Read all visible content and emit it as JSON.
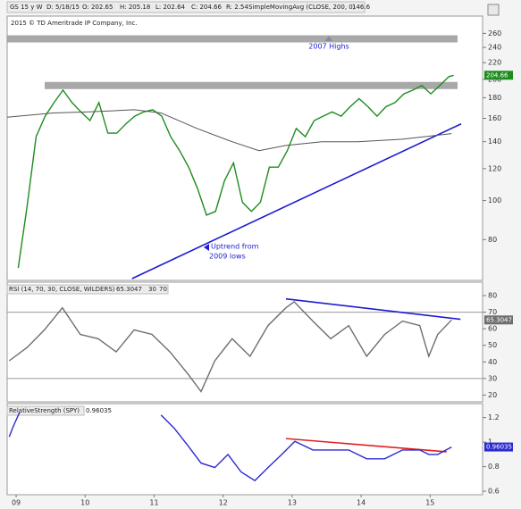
{
  "header": [
    "GS 15 y W",
    "D: 5/18/15",
    "O: 202.65",
    "H: 205.18",
    "L: 202.64",
    "C: 204.66",
    "R: 2.54",
    "SimpleMovingAvg (CLOSE, 200, 0)",
    "146.6"
  ],
  "watermark": "2015 © TD Ameritrade IP Company, Inc.",
  "chart_data": [
    {
      "type": "line",
      "log_scale": true,
      "current_label": "204.66",
      "annotations": [
        "2007 Highs",
        "Uptrend from",
        "2009 lows"
      ],
      "xlim": [
        2008.87,
        2015.76
      ],
      "ylim": [
        64,
        270
      ],
      "yticks": [
        260,
        240,
        220,
        200,
        180,
        160,
        140,
        120,
        100,
        80
      ],
      "levels": [
        193,
        252
      ],
      "level_color": "#9a9a9a",
      "trendlines": [
        {
          "x": [
            2010.68,
            2015.45
          ],
          "values": [
            64,
            155
          ],
          "color": "#1c1cd2"
        }
      ],
      "series": [
        {
          "color": "#1e8c1e",
          "x": [
            2009.03,
            2009.16,
            2009.29,
            2009.42,
            2009.55,
            2009.68,
            2009.81,
            2009.94,
            2010.07,
            2010.2,
            2010.33,
            2010.46,
            2010.59,
            2010.72,
            2010.85,
            2010.98,
            2011.11,
            2011.24,
            2011.37,
            2011.5,
            2011.63,
            2011.76,
            2011.89,
            2012.02,
            2012.15,
            2012.28,
            2012.41,
            2012.54,
            2012.67,
            2012.8,
            2012.93,
            2013.06,
            2013.19,
            2013.32,
            2013.45,
            2013.58,
            2013.71,
            2013.84,
            2013.97,
            2014.1,
            2014.23,
            2014.36,
            2014.49,
            2014.62,
            2014.75,
            2014.88,
            2015.01,
            2015.14,
            2015.27,
            2015.34
          ],
          "values": [
            68,
            97,
            144,
            162,
            175,
            188,
            175,
            166,
            158,
            175,
            147,
            147,
            155,
            162,
            166,
            168,
            162,
            144,
            133,
            121,
            107,
            92,
            94,
            112,
            124,
            99,
            94,
            99,
            121,
            121,
            133,
            151,
            144,
            158,
            162,
            166,
            162,
            171,
            179,
            171,
            162,
            171,
            175,
            184,
            188,
            193,
            184,
            193,
            203,
            204.66
          ]
        },
        {
          "color": "#555555",
          "x": [
            2008.87,
            2009.54,
            2010.06,
            2010.71,
            2011.1,
            2011.62,
            2012.13,
            2012.52,
            2012.91,
            2013.43,
            2013.95,
            2014.6,
            2015.31
          ],
          "values": [
            161,
            165,
            166,
            168,
            165,
            151,
            140,
            133,
            137,
            140,
            140,
            142,
            146.6
          ]
        }
      ]
    },
    {
      "type": "line",
      "title": "RSI (14, 70, 30, CLOSE, WILDERS)",
      "current_label": "65.3047",
      "xlim": [
        2008.87,
        2015.76
      ],
      "ylim": [
        17,
        87
      ],
      "yticks": [
        80,
        70,
        60,
        50,
        40,
        30,
        20
      ],
      "levels": [
        30,
        70
      ],
      "level_color": "#999999",
      "trendlines": [
        {
          "x": [
            2012.91,
            2015.44
          ],
          "values": [
            78,
            65.7
          ],
          "color": "#1c1cd2"
        }
      ],
      "series": [
        {
          "color": "#6e6e6e",
          "x": [
            2008.9,
            2009.16,
            2009.41,
            2009.67,
            2009.93,
            2010.19,
            2010.45,
            2010.71,
            2010.97,
            2011.23,
            2011.49,
            2011.68,
            2011.88,
            2012.13,
            2012.39,
            2012.65,
            2012.91,
            2013.03,
            2013.3,
            2013.56,
            2013.82,
            2014.08,
            2014.34,
            2014.6,
            2014.85,
            2014.98,
            2015.11,
            2015.31
          ],
          "values": [
            40.7,
            48.7,
            59.3,
            72.6,
            56.6,
            54,
            46,
            59.3,
            56.6,
            46,
            32.7,
            22.1,
            40.7,
            54,
            43.4,
            61.9,
            72.6,
            76.3,
            64.6,
            54,
            61.9,
            43.4,
            56.6,
            64.6,
            61.9,
            43.4,
            56.6,
            65.3047
          ]
        }
      ]
    },
    {
      "type": "line",
      "title": "RelativeStrength (SPY)",
      "current_label": "0.96035",
      "xlim": [
        2008.87,
        2015.76
      ],
      "ylim": [
        0.564,
        1.314
      ],
      "yticks": [
        1.2,
        1,
        0.8,
        0.6
      ],
      "xticks": [
        {
          "value": 2009,
          "label": "09"
        },
        {
          "value": 2010,
          "label": "10"
        },
        {
          "value": 2011,
          "label": "11"
        },
        {
          "value": 2012,
          "label": "12"
        },
        {
          "value": 2013,
          "label": "13"
        },
        {
          "value": 2014,
          "label": "14"
        },
        {
          "value": 2015,
          "label": "15"
        }
      ],
      "trendlines": [
        {
          "x": [
            2012.91,
            2015.24
          ],
          "values": [
            1.029,
            0.921
          ],
          "color": "#e02020"
        }
      ],
      "series": [
        {
          "color": "#2b2bd0",
          "x": [
            2008.9,
            2008.96,
            2009.05,
            2010.5,
            2011.1,
            2011.29,
            2011.49,
            2011.68,
            2011.88,
            2012.07,
            2012.26,
            2012.46,
            2012.65,
            2012.85,
            2013.04,
            2013.3,
            2013.56,
            2013.82,
            2014.08,
            2014.34,
            2014.6,
            2014.85,
            2014.98,
            2015.11,
            2015.31
          ],
          "values": [
            1.043,
            1.129,
            1.243,
            null,
            1.221,
            1.114,
            0.971,
            0.829,
            0.793,
            0.9,
            0.757,
            0.686,
            0.793,
            0.9,
            1.007,
            0.936,
            0.936,
            0.936,
            0.864,
            0.864,
            0.936,
            0.936,
            0.9,
            0.9,
            0.960354
          ]
        }
      ]
    }
  ]
}
